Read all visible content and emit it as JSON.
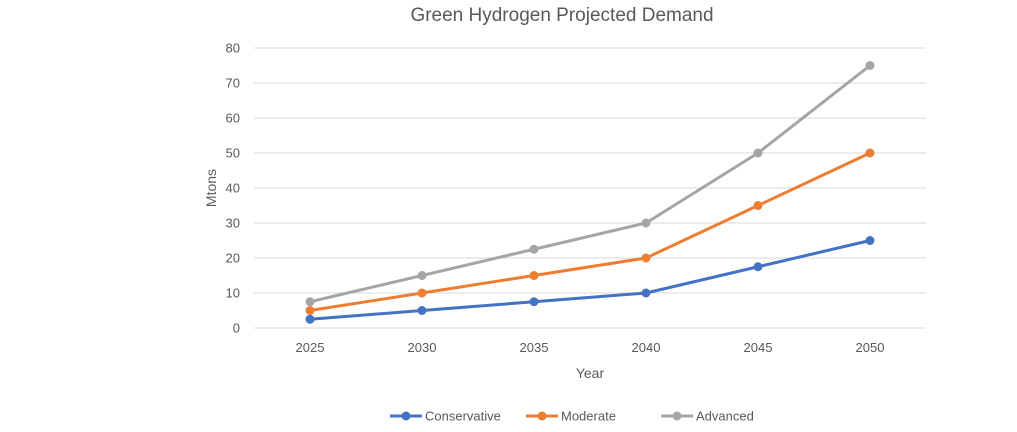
{
  "chart_data": {
    "type": "line",
    "title": "Green Hydrogen Projected Demand",
    "xlabel": "Year",
    "ylabel": "Mtons",
    "categories": [
      "2025",
      "2030",
      "2035",
      "2040",
      "2045",
      "2050"
    ],
    "ylim": [
      0,
      80
    ],
    "yticks": [
      "0",
      "10",
      "20",
      "30",
      "40",
      "50",
      "60",
      "70",
      "80"
    ],
    "grid": true,
    "legend_position": "bottom",
    "series": [
      {
        "name": "Conservative",
        "color": "#4472C4",
        "values": [
          2.5,
          5,
          7.5,
          10,
          17.5,
          25
        ]
      },
      {
        "name": "Moderate",
        "color": "#ED7D31",
        "values": [
          5,
          10,
          15,
          20,
          35,
          50
        ]
      },
      {
        "name": "Advanced",
        "color": "#A5A5A5",
        "values": [
          7.5,
          15,
          22.5,
          30,
          50,
          75
        ]
      }
    ]
  }
}
